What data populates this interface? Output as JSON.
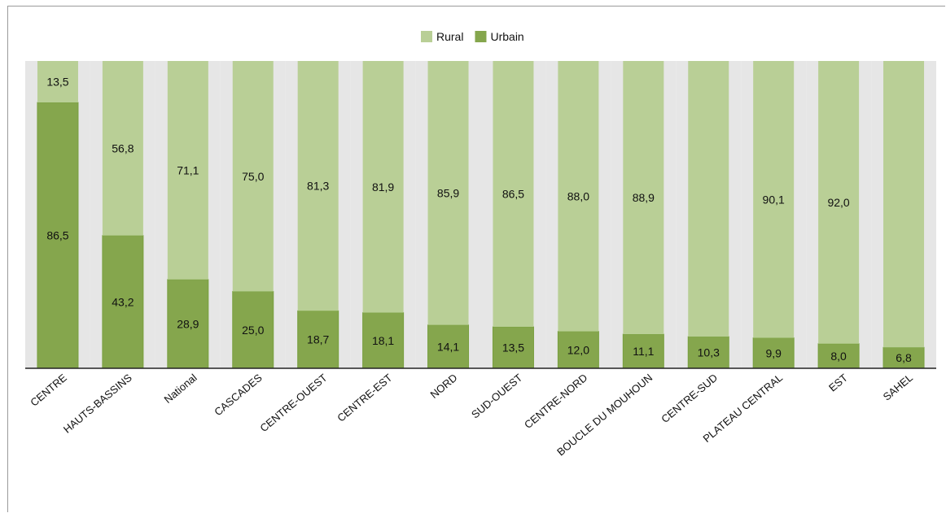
{
  "chart_data": {
    "type": "bar",
    "stacked": true,
    "percent_stacked": true,
    "categories": [
      "CENTRE",
      "HAUTS-BASSINS",
      "National",
      "CASCADES",
      "CENTRE-OUEST",
      "CENTRE-EST",
      "NORD",
      "SUD-OUEST",
      "CENTRE-NORD",
      "BOUCLE DU MOUHOUN",
      "CENTRE-SUD",
      "PLATEAU CENTRAL",
      "EST",
      "SAHEL"
    ],
    "series": [
      {
        "name": "Urbain",
        "color": "#85a64d",
        "values": [
          86.5,
          43.2,
          28.9,
          25.0,
          18.7,
          18.1,
          14.1,
          13.5,
          12.0,
          11.1,
          10.3,
          9.9,
          8.0,
          6.8
        ],
        "labels": [
          "86,5",
          "43,2",
          "28,9",
          "25,0",
          "18,7",
          "18,1",
          "14,1",
          "13,5",
          "12,0",
          "11,1",
          "10,3",
          "9,9",
          "8,0",
          "6,8"
        ]
      },
      {
        "name": "Rural",
        "color": "#b9cf96",
        "values": [
          13.5,
          56.8,
          71.1,
          75.0,
          81.3,
          81.9,
          85.9,
          86.5,
          88.0,
          88.9,
          89.7,
          90.1,
          92.0,
          93.2
        ],
        "labels": [
          "13,5",
          "56,8",
          "71,1",
          "75,0",
          "81,3",
          "81,9",
          "85,9",
          "86,5",
          "88,0",
          "88,9",
          "",
          "90,1",
          "92,0",
          ""
        ]
      }
    ],
    "legend_order": [
      "Rural",
      "Urbain"
    ],
    "legend_position": "top-center",
    "ylim": [
      0,
      100
    ],
    "y_axis_visible": false,
    "grid": false,
    "category_band_color": "#e6e6e6",
    "title": "",
    "xlabel": "",
    "ylabel": ""
  }
}
